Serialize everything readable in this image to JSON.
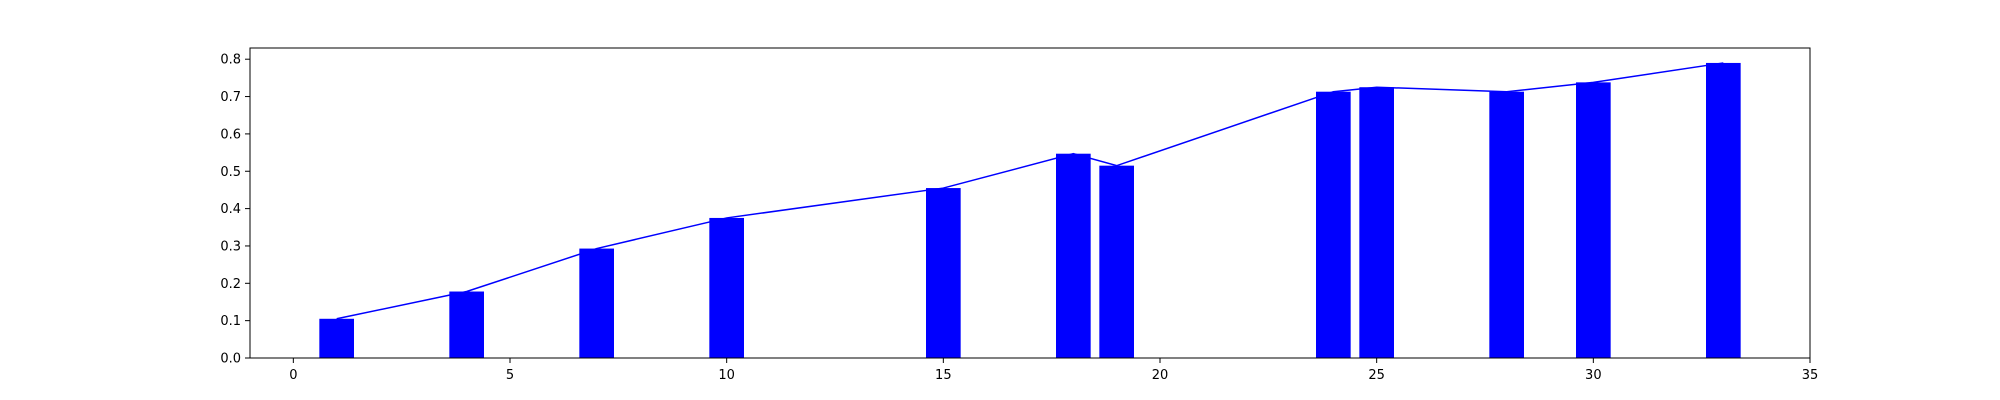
{
  "chart_data": {
    "type": "bar",
    "x": [
      1,
      4,
      7,
      10,
      15,
      18,
      19,
      24,
      25,
      28,
      30,
      33
    ],
    "values": [
      0.105,
      0.178,
      0.293,
      0.375,
      0.455,
      0.547,
      0.515,
      0.713,
      0.725,
      0.713,
      0.738,
      0.79
    ],
    "overlay_line": {
      "x": [
        1,
        4,
        7,
        10,
        15,
        18,
        19,
        24,
        25,
        28,
        30,
        33
      ],
      "values": [
        0.105,
        0.178,
        0.293,
        0.375,
        0.455,
        0.547,
        0.515,
        0.713,
        0.725,
        0.713,
        0.738,
        0.79
      ]
    },
    "bar_width": 0.8,
    "xlim": [
      -1,
      35
    ],
    "ylim": [
      0,
      0.83
    ],
    "x_ticks": [
      0,
      5,
      10,
      15,
      20,
      25,
      30,
      35
    ],
    "y_ticks": [
      0.0,
      0.1,
      0.2,
      0.3,
      0.4,
      0.5,
      0.6,
      0.7,
      0.8
    ],
    "x_tick_labels": [
      "0",
      "5",
      "10",
      "15",
      "20",
      "25",
      "30",
      "35"
    ],
    "y_tick_labels": [
      "0.0",
      "0.1",
      "0.2",
      "0.3",
      "0.4",
      "0.5",
      "0.6",
      "0.7",
      "0.8"
    ],
    "grid": false,
    "colors": {
      "bar": "#0000ff",
      "line": "#0000ff",
      "axis": "#000000"
    },
    "title": "",
    "xlabel": "",
    "ylabel": ""
  }
}
